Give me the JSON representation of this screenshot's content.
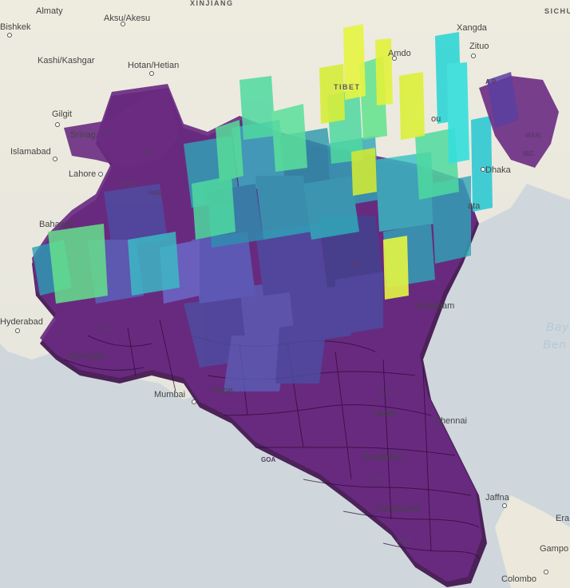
{
  "map": {
    "colors": {
      "sea": "#cfd7dc",
      "land": "#ece9dc",
      "low": "#5b1a6b",
      "mid_low": "#4b4fa3",
      "mid": "#2fa6b8",
      "mid_high": "#4fd9a0",
      "high": "#e6f542"
    },
    "regions": {
      "xinjiang": "XINJIANG",
      "sichuan": "SICHU",
      "tibet": "TIBET"
    },
    "cities": {
      "almaty": "Almaty",
      "aksu": "Aksu/Akesu",
      "bishkek": "Bishkek",
      "kashi": "Kashi/Kashgar",
      "hotan": "Hotan/Hetian",
      "gilgit": "Gilgit",
      "islamabad": "Islamabad",
      "lahore": "Lahore",
      "bahawalpur": "Bahawal",
      "hyderabad": "Hyderabad",
      "jamnagar": "Jamnagar",
      "mumbai": "Mumbai",
      "pune": "Pune",
      "chennai": "Chennai",
      "bengaluru": "Bengaluru",
      "coimbatore": "Coimbatore",
      "jaffna": "Jaffna",
      "colombo": "Colombo",
      "gampola": "Gampo",
      "eravur": "Era",
      "dhaka": "Dhaka",
      "xangda": "Xangda",
      "zituo": "Zituo",
      "amdo": "Amdo",
      "visakhapatnam": "Vi patnam",
      "kolkata": "ata",
      "srinagar": "Srinag",
      "hyderabad_in": "Hyder",
      "shigatse": "ou"
    },
    "states": {
      "jk": "J.K.",
      "hp": "H.P.",
      "pun": "PUN.",
      "har": "HAR.",
      "guj": "GUJ.",
      "ap": "A.P.",
      "goa": "GOA",
      "ker": "KER.",
      "miz": "MIZ.",
      "man": "MAN.",
      "arp": "A.P.",
      "chh": "CH.",
      "tn": "T.N."
    },
    "sea": {
      "bay_line1": "Bay",
      "bay_line2": "Ben"
    }
  }
}
